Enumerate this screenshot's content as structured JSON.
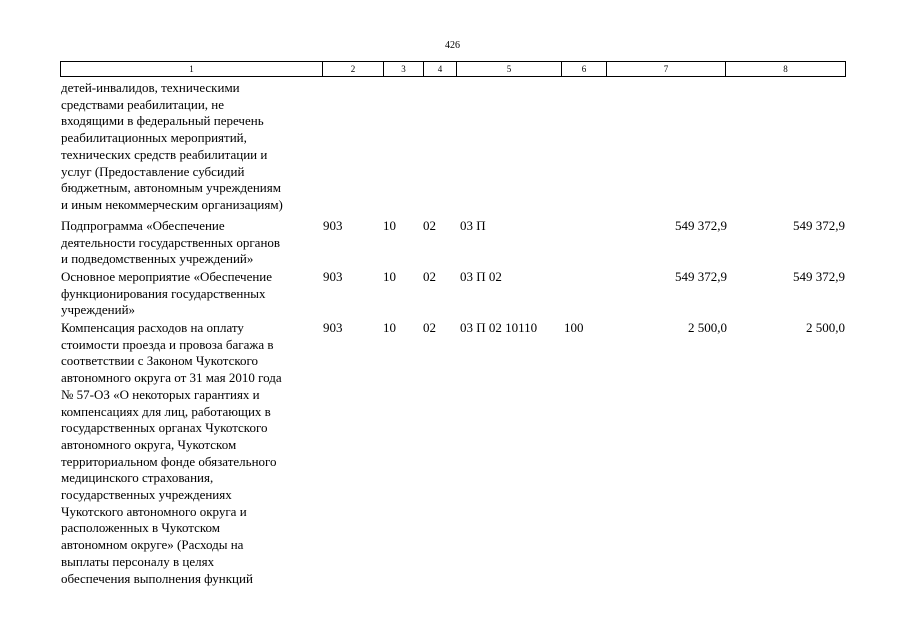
{
  "page_number": "426",
  "column_headers": [
    "1",
    "2",
    "3",
    "4",
    "5",
    "6",
    "7",
    "8"
  ],
  "rows": [
    {
      "name": "детей-инвалидов, техническими\nсредствами реабилитации, не\nвходящими в федеральный перечень\nреабилитационных мероприятий,\nтехнических средств реабилитации и\nуслуг (Предоставление субсидий\nбюджетным, автономным учреждениям\nи иным некоммерческим организациям)",
      "c2": "",
      "c3": "",
      "c4": "",
      "c5": "",
      "c6": "",
      "c7": "",
      "c8": ""
    },
    {
      "name": "Подпрограмма «Обеспечение\nдеятельности государственных органов\nи подведомственных учреждений»",
      "c2": "903",
      "c3": "10",
      "c4": "02",
      "c5": "03 П",
      "c6": "",
      "c7": "549 372,9",
      "c8": "549 372,9"
    },
    {
      "name": "Основное мероприятие «Обеспечение\nфункционирования государственных\nучреждений»",
      "c2": "903",
      "c3": "10",
      "c4": "02",
      "c5": "03 П 02",
      "c6": "",
      "c7": "549 372,9",
      "c8": "549 372,9"
    },
    {
      "name": "Компенсация расходов на оплату\nстоимости проезда и провоза багажа в\nсоответствии с Законом Чукотского\nавтономного округа от 31 мая 2010 года\n№ 57-ОЗ «О некоторых гарантиях и\nкомпенсациях для лиц, работающих в\nгосударственных органах Чукотского\nавтономного округа, Чукотском\nтерриториальном фонде обязательного\nмедицинского страхования,\nгосударственных учреждениях\nЧукотского автономного округа и\nрасположенных в Чукотском\nавтономном округе» (Расходы на\nвыплаты персоналу в целях\nобеспечения выполнения функций",
      "c2": "903",
      "c3": "10",
      "c4": "02",
      "c5": "03 П 02 10110",
      "c6": "100",
      "c7": "2 500,0",
      "c8": "2 500,0"
    }
  ]
}
